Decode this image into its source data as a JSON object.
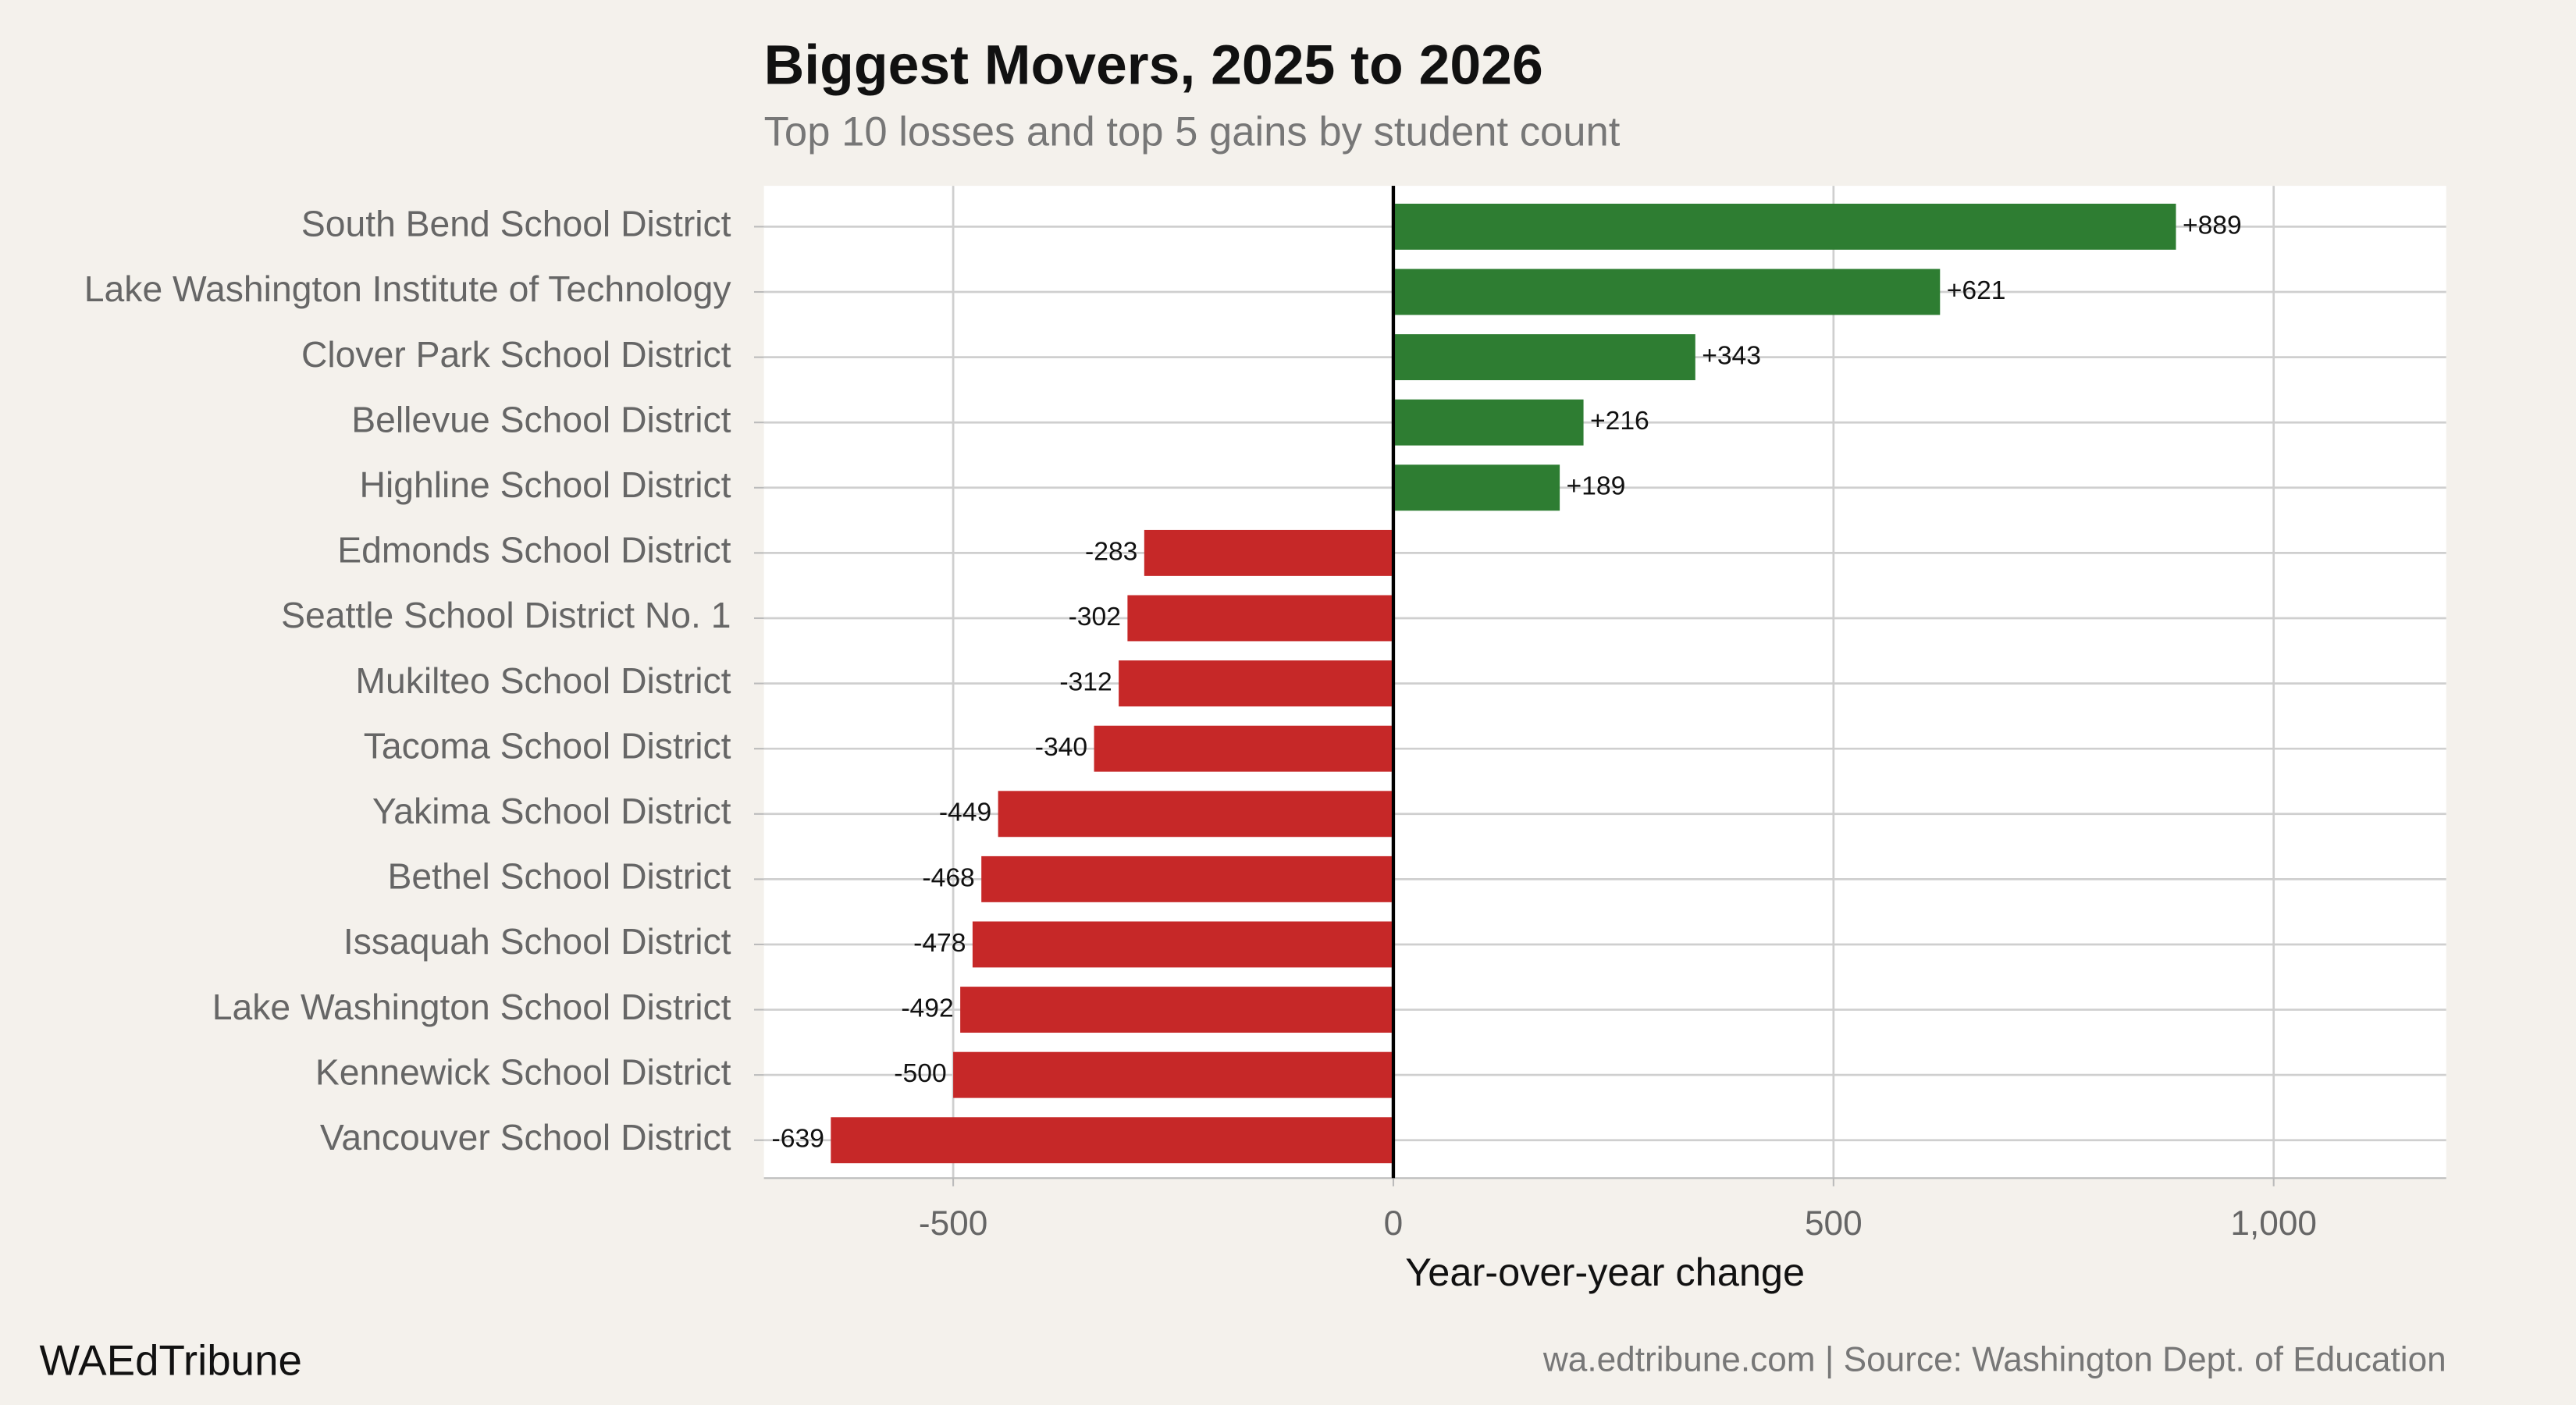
{
  "chart_data": {
    "type": "bar",
    "orientation": "horizontal",
    "title": "Biggest Movers, 2025 to 2026",
    "subtitle": "Top 10 losses and top 5 gains by student count",
    "xlabel": "Year-over-year change",
    "brand": "WAEdTribune",
    "source": "wa.edtribune.com | Source: Washington Dept. of Education",
    "categories": [
      "South Bend School District",
      "Lake Washington Institute of Technology",
      "Clover Park School District",
      "Bellevue School District",
      "Highline School District",
      "Edmonds School District",
      "Seattle School District No. 1",
      "Mukilteo School District",
      "Tacoma School District",
      "Yakima School District",
      "Bethel School District",
      "Issaquah School District",
      "Lake Washington School District",
      "Kennewick School District",
      "Vancouver School District"
    ],
    "values": [
      889,
      621,
      343,
      216,
      189,
      -283,
      -302,
      -312,
      -340,
      -449,
      -468,
      -478,
      -492,
      -500,
      -639
    ],
    "value_labels": [
      "+889",
      "+621",
      "+343",
      "+216",
      "+189",
      "-283",
      "-302",
      "-312",
      "-340",
      "-449",
      "-468",
      "-478",
      "-492",
      "-500",
      "-639"
    ],
    "positive_color": "#2e7d32",
    "negative_color": "#c62828",
    "xlim": [
      -715,
      1196
    ],
    "xticks": [
      -500,
      0,
      500,
      {
        "value": 1000,
        "label": "1,000"
      }
    ],
    "grid": true
  }
}
